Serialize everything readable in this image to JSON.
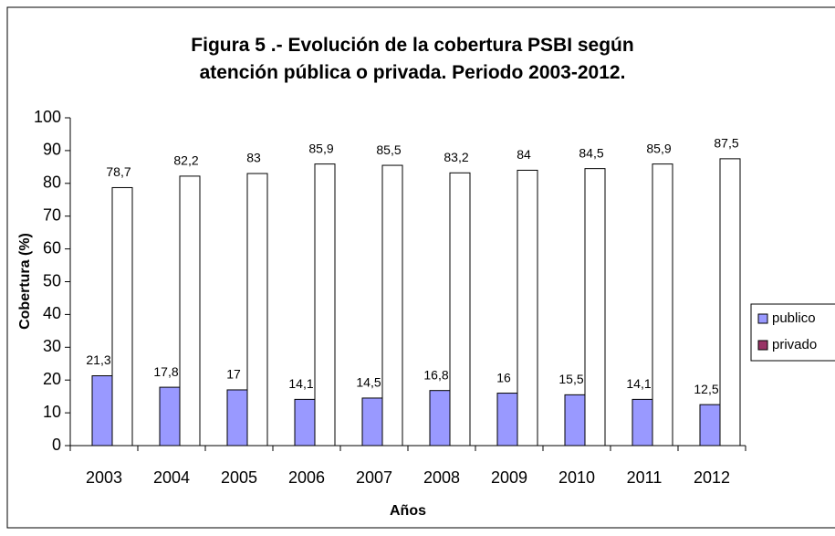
{
  "chart_data": {
    "type": "bar",
    "title": "Figura 5 .- Evolución de la cobertura PSBI según atención pública o privada. Periodo 2003-2012.",
    "x_label": "Años",
    "y_label": "Cobertura (%)",
    "categories": [
      "2003",
      "2004",
      "2005",
      "2006",
      "2007",
      "2008",
      "2009",
      "2010",
      "2011",
      "2012"
    ],
    "series": [
      {
        "name": "publico",
        "color": "#9999ff",
        "legend_color": "#9999ff",
        "values": [
          21.3,
          17.8,
          17,
          14.1,
          14.5,
          16.8,
          16,
          15.5,
          14.1,
          12.5
        ],
        "value_labels": [
          "21,3",
          "17,8",
          "17",
          "14,1",
          "14,5",
          "16,8",
          "16",
          "15,5",
          "14,1",
          "12,5"
        ]
      },
      {
        "name": "privado",
        "color": "#ffffff",
        "legend_color": "#993366",
        "values": [
          78.7,
          82.2,
          83,
          85.9,
          85.5,
          83.2,
          84,
          84.5,
          85.9,
          87.5
        ],
        "value_labels": [
          "78,7",
          "82,2",
          "83",
          "85,9",
          "85,5",
          "83,2",
          "84",
          "84,5",
          "85,9",
          "87,5"
        ]
      }
    ],
    "ylim": [
      0,
      100
    ],
    "yticks": [
      0,
      10,
      20,
      30,
      40,
      50,
      60,
      70,
      80,
      90,
      100
    ],
    "grid": false,
    "legend": "right"
  }
}
